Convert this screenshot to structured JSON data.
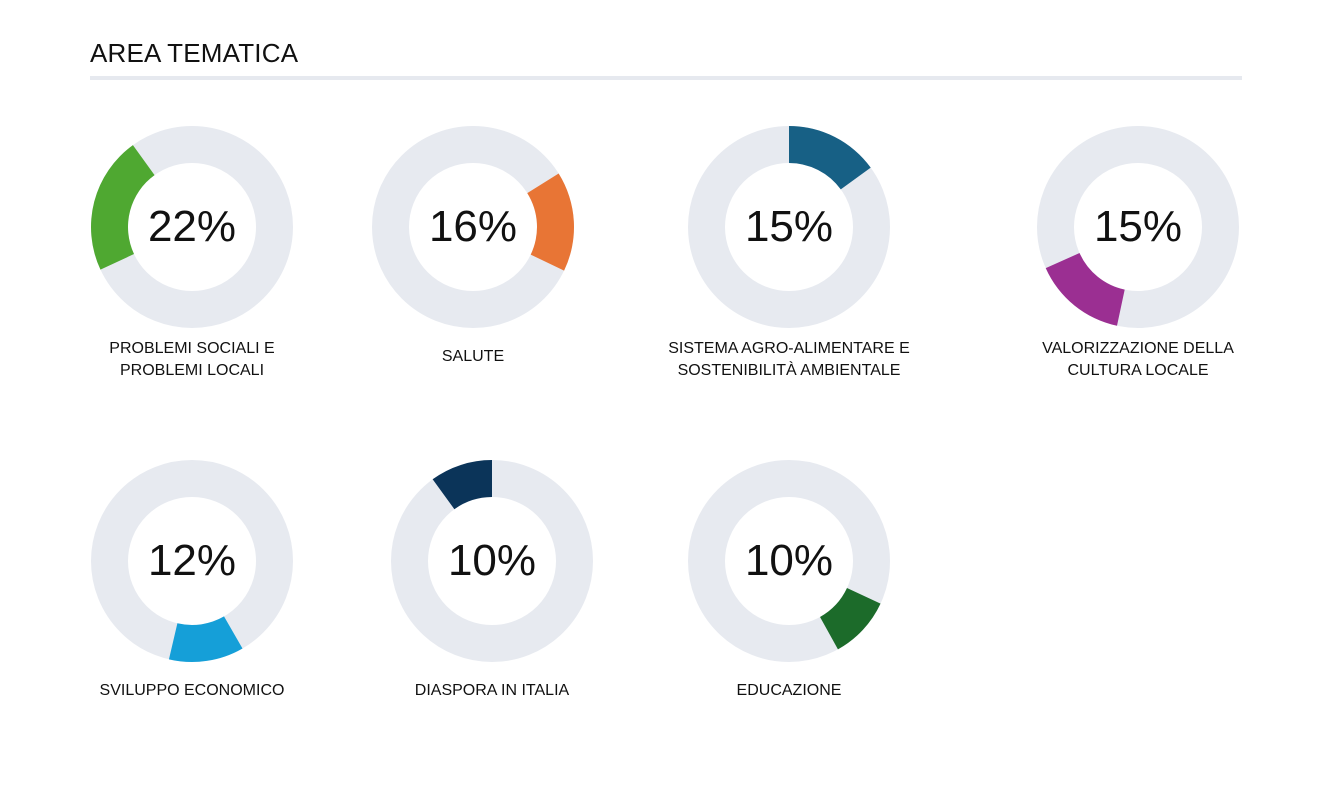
{
  "section": {
    "title": "AREA TEMATICA"
  },
  "colors": {
    "track": "#e7eaf0"
  },
  "chart_data": {
    "type": "donut-set",
    "title": "AREA TEMATICA",
    "items": [
      {
        "label_lines": [
          "PROBLEMI SOCIALI E",
          "PROBLEMI LOCALI"
        ],
        "display": "22%",
        "percent": 22,
        "arc_start_deg": 245,
        "color": "#4fa831"
      },
      {
        "label_lines": [
          "SALUTE"
        ],
        "display": "16%",
        "percent": 16,
        "arc_start_deg": 58,
        "color": "#e87535"
      },
      {
        "label_lines": [
          "SISTEMA AGRO-ALIMENTARE E",
          "SOSTENIBILITÀ AMBIENTALE"
        ],
        "display": "15%",
        "percent": 15,
        "arc_start_deg": 0,
        "color": "#176085"
      },
      {
        "label_lines": [
          "VALORIZZAZIONE DELLA",
          "CULTURA LOCALE"
        ],
        "display": "15%",
        "percent": 15,
        "arc_start_deg": 192,
        "color": "#9b2f92"
      },
      {
        "label_lines": [
          "SVILUPPO ECONOMICO"
        ],
        "display": "12%",
        "percent": 12,
        "arc_start_deg": 150,
        "color": "#159fd8"
      },
      {
        "label_lines": [
          "DIASPORA IN ITALIA"
        ],
        "display": "10%",
        "percent": 10,
        "arc_start_deg": 324,
        "color": "#0b3459"
      },
      {
        "label_lines": [
          "EDUCAZIONE"
        ],
        "display": "10%",
        "percent": 10,
        "arc_start_deg": 115,
        "color": "#1c6b2a"
      }
    ]
  }
}
